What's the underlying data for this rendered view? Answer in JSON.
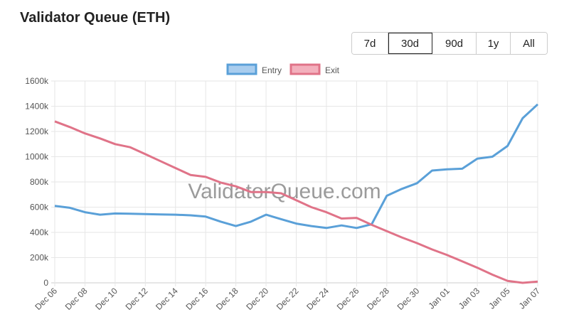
{
  "title": "Validator Queue (ETH)",
  "ranges": [
    {
      "label": "7d",
      "active": false
    },
    {
      "label": "30d",
      "active": true
    },
    {
      "label": "90d",
      "active": false
    },
    {
      "label": "1y",
      "active": false
    },
    {
      "label": "All",
      "active": false
    }
  ],
  "watermark": "ValidatorQueue.com",
  "chart_data": {
    "type": "line",
    "legend_position": "top",
    "grid": true,
    "ylim": [
      0,
      1600
    ],
    "yticks": [
      "0",
      "200k",
      "400k",
      "600k",
      "800k",
      "1000k",
      "1200k",
      "1400k",
      "1600k"
    ],
    "x": [
      "Dec 06",
      "Dec 07",
      "Dec 08",
      "Dec 09",
      "Dec 10",
      "Dec 11",
      "Dec 12",
      "Dec 13",
      "Dec 14",
      "Dec 15",
      "Dec 16",
      "Dec 17",
      "Dec 18",
      "Dec 19",
      "Dec 20",
      "Dec 21",
      "Dec 22",
      "Dec 23",
      "Dec 24",
      "Dec 25",
      "Dec 26",
      "Dec 27",
      "Dec 28",
      "Dec 29",
      "Dec 30",
      "Dec 31",
      "Jan 01",
      "Jan 02",
      "Jan 03",
      "Jan 04",
      "Jan 05",
      "Jan 06",
      "Jan 07"
    ],
    "series": [
      {
        "name": "Entry",
        "color": "#5aa0d8",
        "fill": "#a9cdee",
        "values": [
          610,
          595,
          560,
          540,
          550,
          548,
          545,
          542,
          540,
          535,
          525,
          485,
          450,
          485,
          540,
          505,
          470,
          450,
          435,
          455,
          435,
          465,
          690,
          745,
          790,
          890,
          900,
          905,
          985,
          1000,
          1085,
          1305,
          1415
        ]
      },
      {
        "name": "Exit",
        "color": "#e07388",
        "fill": "#f3b0bd",
        "values": [
          1280,
          1235,
          1185,
          1145,
          1100,
          1075,
          1020,
          965,
          910,
          855,
          840,
          795,
          765,
          720,
          720,
          710,
          655,
          600,
          560,
          510,
          515,
          460,
          410,
          360,
          315,
          265,
          220,
          170,
          120,
          65,
          15,
          0,
          10
        ]
      }
    ]
  }
}
